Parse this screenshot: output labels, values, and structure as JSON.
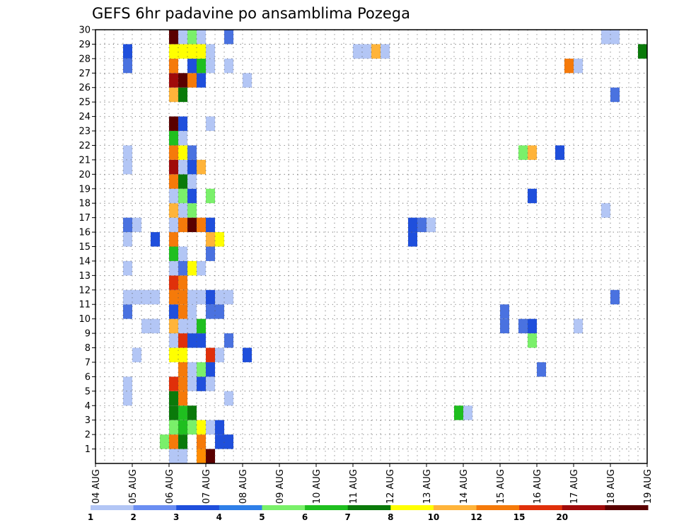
{
  "chart_data": {
    "type": "heatmap",
    "title": "GEFS 6hr padavine po ansamblima Pozega",
    "xlabel": "",
    "ylabel": "",
    "x_ticks": [
      "04 AUG",
      "05 AUG",
      "06 AUG",
      "07 AUG",
      "08 AUG",
      "09 AUG",
      "10 AUG",
      "11 AUG",
      "12 AUG",
      "13 AUG",
      "14 AUG",
      "15 AUG",
      "16 AUG",
      "17 AUG",
      "18 AUG",
      "19 AUG"
    ],
    "y_ticks": [
      "1",
      "2",
      "3",
      "4",
      "5",
      "6",
      "7",
      "8",
      "9",
      "10",
      "11",
      "12",
      "13",
      "14",
      "15",
      "16",
      "17",
      "18",
      "19",
      "20",
      "21",
      "22",
      "23",
      "24",
      "25",
      "26",
      "27",
      "28",
      "29",
      "30"
    ],
    "xlim": [
      0,
      60
    ],
    "ylim": [
      0,
      30
    ],
    "grid": true,
    "colorbar": {
      "levels": [
        "1",
        "2",
        "3",
        "4",
        "5",
        "6",
        "7",
        "8",
        "10",
        "12",
        "15",
        "20"
      ],
      "colors": [
        "#b3c6f5",
        "#6b8ef2",
        "#1f4fdc",
        "#2f7fe8",
        "#7af06a",
        "#1fbf1f",
        "#0a7a0a",
        "#ffff00",
        "#ffb43a",
        "#f57a0a",
        "#e0300a",
        "#a00a0a",
        "#5a0000"
      ]
    },
    "cells": [
      {
        "m": 0,
        "t": [
          [
            8,
            "#b3c6f5"
          ],
          [
            9,
            "#b3c6f5"
          ],
          [
            11,
            "#ff8c00"
          ],
          [
            12,
            "#5a0000"
          ]
        ]
      },
      {
        "m": 1,
        "t": [
          [
            7,
            "#7af06a"
          ],
          [
            8,
            "#f57a0a"
          ],
          [
            9,
            "#0a7a0a"
          ],
          [
            11,
            "#f57a0a"
          ],
          [
            13,
            "#1f4fdc"
          ],
          [
            14,
            "#1f4fdc"
          ]
        ]
      },
      {
        "m": 2,
        "t": [
          [
            8,
            "#7af06a"
          ],
          [
            9,
            "#1fbf1f"
          ],
          [
            10,
            "#7af06a"
          ],
          [
            11,
            "#ffff00"
          ],
          [
            12,
            "#b3c6f5"
          ],
          [
            13,
            "#1f4fdc"
          ]
        ]
      },
      {
        "m": 3,
        "t": [
          [
            8,
            "#0a7a0a"
          ],
          [
            9,
            "#1fbf1f"
          ],
          [
            10,
            "#0a7a0a"
          ],
          [
            39,
            "#1fbf1f"
          ],
          [
            40,
            "#b3c6f5"
          ]
        ]
      },
      {
        "m": 4,
        "t": [
          [
            3,
            "#b3c6f5"
          ],
          [
            8,
            "#0a7a0a"
          ],
          [
            9,
            "#f57a0a"
          ],
          [
            14,
            "#b3c6f5"
          ]
        ]
      },
      {
        "m": 5,
        "t": [
          [
            3,
            "#b3c6f5"
          ],
          [
            8,
            "#e0300a"
          ],
          [
            9,
            "#f57a0a"
          ],
          [
            10,
            "#b3c6f5"
          ],
          [
            11,
            "#1f4fdc"
          ],
          [
            12,
            "#b3c6f5"
          ]
        ]
      },
      {
        "m": 6,
        "t": [
          [
            9,
            "#f57a0a"
          ],
          [
            10,
            "#b3c6f5"
          ],
          [
            11,
            "#7af06a"
          ],
          [
            12,
            "#1f4fdc"
          ],
          [
            48,
            "#4a72e0"
          ]
        ]
      },
      {
        "m": 7,
        "t": [
          [
            4,
            "#b3c6f5"
          ],
          [
            8,
            "#ffff00"
          ],
          [
            9,
            "#ffff00"
          ],
          [
            12,
            "#e0300a"
          ],
          [
            13,
            "#b3c6f5"
          ],
          [
            16,
            "#1f4fdc"
          ]
        ]
      },
      {
        "m": 8,
        "t": [
          [
            8,
            "#b3c6f5"
          ],
          [
            9,
            "#e0300a"
          ],
          [
            10,
            "#1f4fdc"
          ],
          [
            11,
            "#1f4fdc"
          ],
          [
            14,
            "#4a72e0"
          ],
          [
            47,
            "#7af06a"
          ]
        ]
      },
      {
        "m": 9,
        "t": [
          [
            5,
            "#b3c6f5"
          ],
          [
            6,
            "#b3c6f5"
          ],
          [
            8,
            "#ffb43a"
          ],
          [
            9,
            "#b3c6f5"
          ],
          [
            10,
            "#b3c6f5"
          ],
          [
            11,
            "#1fbf1f"
          ],
          [
            44,
            "#4a72e0"
          ],
          [
            46,
            "#4a72e0"
          ],
          [
            47,
            "#1f4fdc"
          ],
          [
            52,
            "#b3c6f5"
          ]
        ]
      },
      {
        "m": 10,
        "t": [
          [
            3,
            "#4a72e0"
          ],
          [
            8,
            "#1f4fdc"
          ],
          [
            9,
            "#f57a0a"
          ],
          [
            10,
            "#b3c6f5"
          ],
          [
            12,
            "#4a72e0"
          ],
          [
            13,
            "#4a72e0"
          ],
          [
            44,
            "#4a72e0"
          ]
        ]
      },
      {
        "m": 11,
        "t": [
          [
            3,
            "#b3c6f5"
          ],
          [
            4,
            "#b3c6f5"
          ],
          [
            5,
            "#b3c6f5"
          ],
          [
            6,
            "#b3c6f5"
          ],
          [
            8,
            "#f57a0a"
          ],
          [
            9,
            "#f57a0a"
          ],
          [
            10,
            "#b3c6f5"
          ],
          [
            11,
            "#b3c6f5"
          ],
          [
            12,
            "#1f4fdc"
          ],
          [
            13,
            "#b3c6f5"
          ],
          [
            14,
            "#b3c6f5"
          ],
          [
            56,
            "#4a72e0"
          ],
          [
            60,
            "#b3c6f5"
          ]
        ]
      },
      {
        "m": 12,
        "t": [
          [
            8,
            "#e0300a"
          ],
          [
            9,
            "#f57a0a"
          ]
        ]
      },
      {
        "m": 13,
        "t": [
          [
            3,
            "#b3c6f5"
          ],
          [
            8,
            "#b3c6f5"
          ],
          [
            9,
            "#4a72e0"
          ],
          [
            10,
            "#ffff00"
          ],
          [
            11,
            "#b3c6f5"
          ]
        ]
      },
      {
        "m": 14,
        "t": [
          [
            8,
            "#1fbf1f"
          ],
          [
            9,
            "#b3c6f5"
          ],
          [
            12,
            "#4a72e0"
          ]
        ]
      },
      {
        "m": 15,
        "t": [
          [
            3,
            "#b3c6f5"
          ],
          [
            6,
            "#1f4fdc"
          ],
          [
            8,
            "#f57a0a"
          ],
          [
            12,
            "#ffb43a"
          ],
          [
            13,
            "#ffff00"
          ],
          [
            34,
            "#1f4fdc"
          ]
        ]
      },
      {
        "m": 16,
        "t": [
          [
            3,
            "#4a72e0"
          ],
          [
            4,
            "#b3c6f5"
          ],
          [
            8,
            "#b3c6f5"
          ],
          [
            9,
            "#f57a0a"
          ],
          [
            10,
            "#5a0000"
          ],
          [
            11,
            "#f57a0a"
          ],
          [
            12,
            "#1f4fdc"
          ],
          [
            34,
            "#1f4fdc"
          ],
          [
            35,
            "#4a72e0"
          ],
          [
            36,
            "#b3c6f5"
          ]
        ]
      },
      {
        "m": 17,
        "t": [
          [
            8,
            "#ffb43a"
          ],
          [
            9,
            "#b3c6f5"
          ],
          [
            10,
            "#7af06a"
          ],
          [
            55,
            "#b3c6f5"
          ]
        ]
      },
      {
        "m": 18,
        "t": [
          [
            8,
            "#b3c6f5"
          ],
          [
            9,
            "#7af06a"
          ],
          [
            10,
            "#1f4fdc"
          ],
          [
            12,
            "#7af06a"
          ],
          [
            47,
            "#1f4fdc"
          ]
        ]
      },
      {
        "m": 19,
        "t": [
          [
            8,
            "#f57a0a"
          ],
          [
            9,
            "#0a7a0a"
          ],
          [
            10,
            "#b3c6f5"
          ]
        ]
      },
      {
        "m": 20,
        "t": [
          [
            3,
            "#b3c6f5"
          ],
          [
            8,
            "#a00a0a"
          ],
          [
            9,
            "#b3c6f5"
          ],
          [
            10,
            "#1f4fdc"
          ],
          [
            11,
            "#ffb43a"
          ]
        ]
      },
      {
        "m": 21,
        "t": [
          [
            3,
            "#b3c6f5"
          ],
          [
            8,
            "#f57a0a"
          ],
          [
            9,
            "#ffff00"
          ],
          [
            10,
            "#4a72e0"
          ],
          [
            46,
            "#7af06a"
          ],
          [
            47,
            "#ffb43a"
          ],
          [
            50,
            "#1f4fdc"
          ]
        ]
      },
      {
        "m": 22,
        "t": [
          [
            8,
            "#1fbf1f"
          ],
          [
            9,
            "#b3c6f5"
          ]
        ]
      },
      {
        "m": 23,
        "t": [
          [
            8,
            "#5a0000"
          ],
          [
            9,
            "#1f4fdc"
          ],
          [
            12,
            "#b3c6f5"
          ]
        ]
      },
      {
        "m": 25,
        "t": [
          [
            8,
            "#ffb43a"
          ],
          [
            9,
            "#0a7a0a"
          ],
          [
            56,
            "#4a72e0"
          ]
        ]
      },
      {
        "m": 26,
        "t": [
          [
            8,
            "#a00a0a"
          ],
          [
            9,
            "#5a0000"
          ],
          [
            10,
            "#f57a0a"
          ],
          [
            11,
            "#1f4fdc"
          ],
          [
            16,
            "#b3c6f5"
          ]
        ]
      },
      {
        "m": 27,
        "t": [
          [
            3,
            "#4a72e0"
          ],
          [
            8,
            "#f57a0a"
          ],
          [
            10,
            "#1f4fdc"
          ],
          [
            11,
            "#1fbf1f"
          ],
          [
            12,
            "#b3c6f5"
          ],
          [
            14,
            "#b3c6f5"
          ],
          [
            51,
            "#f57a0a"
          ],
          [
            52,
            "#b3c6f5"
          ]
        ]
      },
      {
        "m": 28,
        "t": [
          [
            3,
            "#1f4fdc"
          ],
          [
            8,
            "#ffff00"
          ],
          [
            9,
            "#ffff00"
          ],
          [
            10,
            "#ffff00"
          ],
          [
            11,
            "#ffff00"
          ],
          [
            12,
            "#b3c6f5"
          ],
          [
            28,
            "#b3c6f5"
          ],
          [
            29,
            "#b3c6f5"
          ],
          [
            30,
            "#ffb43a"
          ],
          [
            31,
            "#b3c6f5"
          ],
          [
            59,
            "#0a7a0a"
          ]
        ]
      },
      {
        "m": 29,
        "t": [
          [
            8,
            "#5a0000"
          ],
          [
            9,
            "#b3c6f5"
          ],
          [
            10,
            "#7af06a"
          ],
          [
            11,
            "#b3c6f5"
          ],
          [
            14,
            "#4a72e0"
          ],
          [
            55,
            "#b3c6f5"
          ],
          [
            56,
            "#b3c6f5"
          ]
        ]
      }
    ]
  }
}
